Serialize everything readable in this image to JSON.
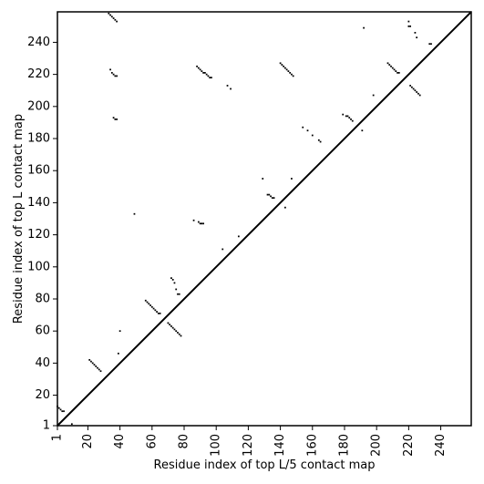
{
  "chart_data": {
    "type": "scatter",
    "title": "",
    "xlabel": "Residue index of top L/5 contact map",
    "ylabel": "Residue index of top L contact map",
    "xlim": [
      1,
      259
    ],
    "ylim": [
      1,
      259
    ],
    "x_ticks": [
      1,
      20,
      40,
      60,
      80,
      100,
      120,
      140,
      160,
      180,
      200,
      220,
      240
    ],
    "y_ticks": [
      1,
      20,
      40,
      60,
      80,
      100,
      120,
      140,
      160,
      180,
      200,
      220,
      240
    ],
    "grid": false,
    "legend": "none",
    "diagonal": true,
    "marker_color": "#000000",
    "points": [
      [
        1,
        13
      ],
      [
        2,
        12
      ],
      [
        3,
        11
      ],
      [
        4,
        10
      ],
      [
        5,
        10
      ],
      [
        10,
        2
      ],
      [
        21,
        42
      ],
      [
        22,
        41
      ],
      [
        23,
        40
      ],
      [
        24,
        39
      ],
      [
        25,
        38
      ],
      [
        26,
        37
      ],
      [
        27,
        36
      ],
      [
        28,
        35
      ],
      [
        33,
        258
      ],
      [
        34,
        257
      ],
      [
        35,
        256
      ],
      [
        36,
        255
      ],
      [
        37,
        254
      ],
      [
        38,
        253
      ],
      [
        34,
        223
      ],
      [
        35,
        221
      ],
      [
        36,
        220
      ],
      [
        37,
        219
      ],
      [
        38,
        219
      ],
      [
        36,
        193
      ],
      [
        37,
        192
      ],
      [
        38,
        192
      ],
      [
        40,
        60
      ],
      [
        39,
        46
      ],
      [
        49,
        133
      ],
      [
        56,
        79
      ],
      [
        57,
        78
      ],
      [
        58,
        77
      ],
      [
        59,
        76
      ],
      [
        60,
        75
      ],
      [
        61,
        74
      ],
      [
        62,
        73
      ],
      [
        63,
        72
      ],
      [
        64,
        71
      ],
      [
        65,
        71
      ],
      [
        70,
        65
      ],
      [
        71,
        64
      ],
      [
        72,
        63
      ],
      [
        73,
        62
      ],
      [
        74,
        61
      ],
      [
        75,
        60
      ],
      [
        76,
        59
      ],
      [
        77,
        58
      ],
      [
        78,
        57
      ],
      [
        72,
        93
      ],
      [
        73,
        92
      ],
      [
        74,
        90
      ],
      [
        75,
        86
      ],
      [
        76,
        83
      ],
      [
        77,
        83
      ],
      [
        86,
        129
      ],
      [
        89,
        128
      ],
      [
        90,
        127
      ],
      [
        91,
        127
      ],
      [
        92,
        127
      ],
      [
        88,
        225
      ],
      [
        89,
        224
      ],
      [
        90,
        223
      ],
      [
        91,
        222
      ],
      [
        92,
        221
      ],
      [
        93,
        221
      ],
      [
        94,
        220
      ],
      [
        95,
        219
      ],
      [
        96,
        218
      ],
      [
        97,
        218
      ],
      [
        104,
        111
      ],
      [
        107,
        213
      ],
      [
        109,
        211
      ],
      [
        114,
        119
      ],
      [
        129,
        155
      ],
      [
        132,
        145
      ],
      [
        133,
        145
      ],
      [
        134,
        144
      ],
      [
        135,
        143
      ],
      [
        136,
        143
      ],
      [
        143,
        137
      ],
      [
        147,
        155
      ],
      [
        140,
        227
      ],
      [
        141,
        226
      ],
      [
        142,
        225
      ],
      [
        143,
        224
      ],
      [
        144,
        223
      ],
      [
        145,
        222
      ],
      [
        146,
        221
      ],
      [
        147,
        220
      ],
      [
        148,
        219
      ],
      [
        154,
        187
      ],
      [
        157,
        185
      ],
      [
        160,
        182
      ],
      [
        164,
        179
      ],
      [
        165,
        178
      ],
      [
        179,
        195
      ],
      [
        181,
        194
      ],
      [
        182,
        194
      ],
      [
        183,
        193
      ],
      [
        184,
        192
      ],
      [
        185,
        191
      ],
      [
        191,
        185
      ],
      [
        192,
        249
      ],
      [
        198,
        207
      ],
      [
        207,
        227
      ],
      [
        208,
        226
      ],
      [
        209,
        225
      ],
      [
        210,
        224
      ],
      [
        211,
        223
      ],
      [
        212,
        222
      ],
      [
        213,
        221
      ],
      [
        214,
        221
      ],
      [
        220,
        253
      ],
      [
        220,
        250
      ],
      [
        221,
        250
      ],
      [
        221,
        213
      ],
      [
        222,
        212
      ],
      [
        223,
        211
      ],
      [
        224,
        210
      ],
      [
        225,
        209
      ],
      [
        226,
        208
      ],
      [
        227,
        207
      ],
      [
        224,
        246
      ],
      [
        225,
        243
      ],
      [
        233,
        239
      ],
      [
        234,
        239
      ]
    ]
  }
}
